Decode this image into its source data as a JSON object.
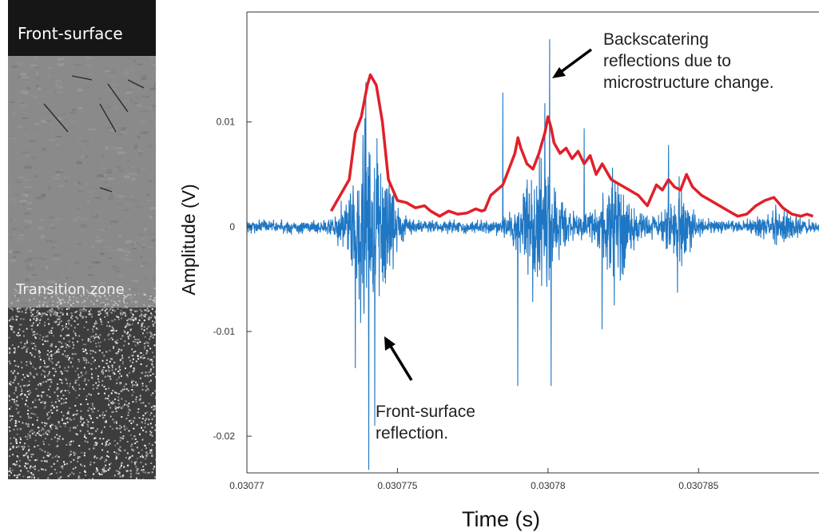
{
  "micrograph": {
    "top_label": "Front-surface",
    "middle_label": "Transition zone"
  },
  "annotations": {
    "backscatter": [
      "Backscatering",
      "reflections due to",
      "microstructure change."
    ],
    "front": [
      "Front-surface",
      "reflection."
    ]
  },
  "colors": {
    "signal": "#1f77c4",
    "envelope": "#e0202a",
    "arrow": "#000000"
  },
  "chart_data": {
    "type": "line",
    "xlabel": "Time (s)",
    "ylabel": "Amplitude (V)",
    "xlim": [
      0.03077,
      0.030789
    ],
    "ylim": [
      -0.0235,
      0.0205
    ],
    "xticks": [
      0.03077,
      0.030775,
      0.03078,
      0.030785
    ],
    "xtick_labels": [
      "0.03077",
      "0.030775",
      "0.03078",
      "0.030785"
    ],
    "yticks": [
      -0.02,
      -0.01,
      0,
      0.01
    ],
    "ytick_labels": [
      "-0.02",
      "-0.01",
      "0",
      "0.01"
    ],
    "grid": false,
    "series": [
      {
        "role": "ultrasonic signal",
        "color": "#1f77c4",
        "bursts": [
          {
            "t": 0.0307741,
            "amp": 0.0125,
            "width": 7.5e-07
          },
          {
            "t": 0.0307797,
            "amp": 0.0085,
            "width": 7.5e-07
          },
          {
            "t": 0.0307822,
            "amp": 0.006,
            "width": 7e-07
          },
          {
            "t": 0.0307843,
            "amp": 0.0045,
            "width": 5e-07
          },
          {
            "t": 0.0307877,
            "amp": 0.0018,
            "width": 6e-07
          }
        ],
        "spikes": [
          {
            "t": 0.03077395,
            "y": 0.0138
          },
          {
            "t": 0.03077405,
            "y": -0.0232
          },
          {
            "t": 0.0307736,
            "y": -0.0135
          },
          {
            "t": 0.03077425,
            "y": -0.019
          },
          {
            "t": 0.03078005,
            "y": 0.0179
          },
          {
            "t": 0.0307801,
            "y": -0.0152
          },
          {
            "t": 0.030779,
            "y": -0.0152
          },
          {
            "t": 0.0307785,
            "y": 0.0128
          },
          {
            "t": 0.0307799,
            "y": 0.0118
          },
          {
            "t": 0.0307818,
            "y": -0.0098
          },
          {
            "t": 0.0307812,
            "y": 0.0094
          },
          {
            "t": 0.0307843,
            "y": -0.0063
          },
          {
            "t": 0.030784,
            "y": 0.0078
          },
          {
            "t": 0.0307822,
            "y": -0.0075
          }
        ]
      },
      {
        "role": "envelope",
        "color": "#e0202a",
        "x": [
          0.0307728,
          0.0307731,
          0.0307734,
          0.0307736,
          0.0307738,
          0.030774,
          0.0307741,
          0.0307743,
          0.0307745,
          0.0307747,
          0.030775,
          0.0307753,
          0.0307756,
          0.0307759,
          0.0307761,
          0.0307764,
          0.0307767,
          0.030777,
          0.0307773,
          0.0307776,
          0.0307778,
          0.0307779,
          0.0307781,
          0.0307783,
          0.0307785,
          0.0307787,
          0.0307789,
          0.030779,
          0.0307791,
          0.0307793,
          0.0307795,
          0.0307797,
          0.0307799,
          0.03078,
          0.0307801,
          0.0307802,
          0.0307804,
          0.0307806,
          0.0307808,
          0.030781,
          0.0307812,
          0.0307814,
          0.0307816,
          0.0307818,
          0.0307821,
          0.0307824,
          0.0307827,
          0.030783,
          0.0307833,
          0.0307836,
          0.0307838,
          0.030784,
          0.0307842,
          0.0307844,
          0.0307846,
          0.0307848,
          0.0307851,
          0.0307854,
          0.0307857,
          0.030786,
          0.0307863,
          0.0307866,
          0.0307869,
          0.0307872,
          0.0307875,
          0.0307878,
          0.0307881,
          0.0307884,
          0.0307886,
          0.0307888
        ],
        "y": [
          0.0015,
          0.003,
          0.0045,
          0.009,
          0.0105,
          0.0135,
          0.0145,
          0.0135,
          0.01,
          0.0045,
          0.0025,
          0.0023,
          0.0018,
          0.002,
          0.0015,
          0.001,
          0.0015,
          0.0012,
          0.0013,
          0.0017,
          0.0015,
          0.0016,
          0.003,
          0.0035,
          0.004,
          0.0055,
          0.007,
          0.0085,
          0.0075,
          0.006,
          0.0055,
          0.007,
          0.009,
          0.0105,
          0.0095,
          0.008,
          0.007,
          0.0075,
          0.0065,
          0.0072,
          0.006,
          0.0068,
          0.005,
          0.006,
          0.0045,
          0.004,
          0.0035,
          0.003,
          0.002,
          0.004,
          0.0035,
          0.0045,
          0.0038,
          0.0035,
          0.005,
          0.0038,
          0.003,
          0.0025,
          0.002,
          0.0015,
          0.001,
          0.0012,
          0.002,
          0.0025,
          0.0028,
          0.0018,
          0.0012,
          0.001,
          0.0012,
          0.001
        ]
      }
    ]
  }
}
